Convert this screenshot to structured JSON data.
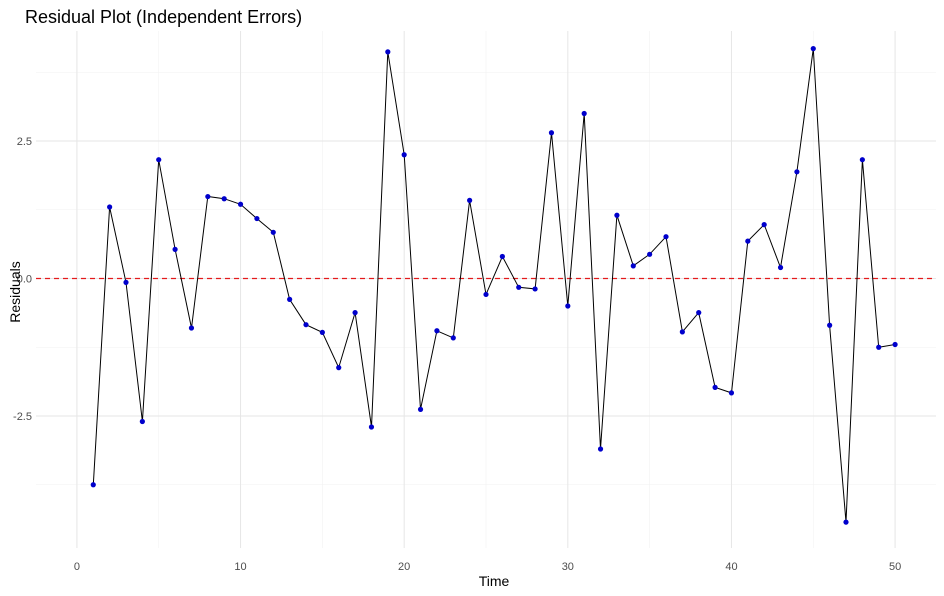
{
  "chart_data": {
    "type": "line",
    "title": "Residual Plot (Independent Errors)",
    "xlabel": "Time",
    "ylabel": "Residuals",
    "xlim": [
      -2.5,
      52.5
    ],
    "ylim": [
      -4.9,
      4.5
    ],
    "x_ticks": [
      0,
      10,
      20,
      30,
      40,
      50
    ],
    "x_tick_labels": [
      "0",
      "10",
      "20",
      "30",
      "40",
      "50"
    ],
    "y_ticks": [
      -2.5,
      0,
      2.5
    ],
    "y_tick_labels": [
      "-2.5",
      "0.0",
      "2.5"
    ],
    "grid": true,
    "reference_line": {
      "y": 0,
      "style": "dashed",
      "color": "#e41a1c"
    },
    "series": [
      {
        "line_color": "#000000",
        "point_color": "#0000cc",
        "x": [
          1,
          2,
          3,
          4,
          5,
          6,
          7,
          8,
          9,
          10,
          11,
          12,
          13,
          14,
          15,
          16,
          17,
          18,
          19,
          20,
          21,
          22,
          23,
          24,
          25,
          26,
          27,
          28,
          29,
          30,
          31,
          32,
          33,
          34,
          35,
          36,
          37,
          38,
          39,
          40,
          41,
          42,
          43,
          44,
          45,
          46,
          47,
          48,
          49,
          50
        ],
        "y": [
          -3.75,
          1.3,
          -0.07,
          -2.6,
          2.16,
          0.53,
          -0.9,
          1.49,
          1.45,
          1.35,
          1.09,
          0.84,
          -0.38,
          -0.84,
          -0.98,
          -1.62,
          -0.62,
          -2.7,
          4.12,
          2.25,
          -2.38,
          -0.95,
          -1.08,
          1.42,
          -0.29,
          0.4,
          -0.16,
          -0.19,
          2.65,
          -0.5,
          3.0,
          -3.1,
          1.15,
          0.23,
          0.44,
          0.76,
          -0.97,
          -0.62,
          -1.98,
          -2.08,
          0.68,
          0.98,
          0.2,
          1.94,
          4.18,
          -0.85,
          -4.43,
          2.16,
          -1.25,
          -1.2
        ]
      }
    ]
  }
}
